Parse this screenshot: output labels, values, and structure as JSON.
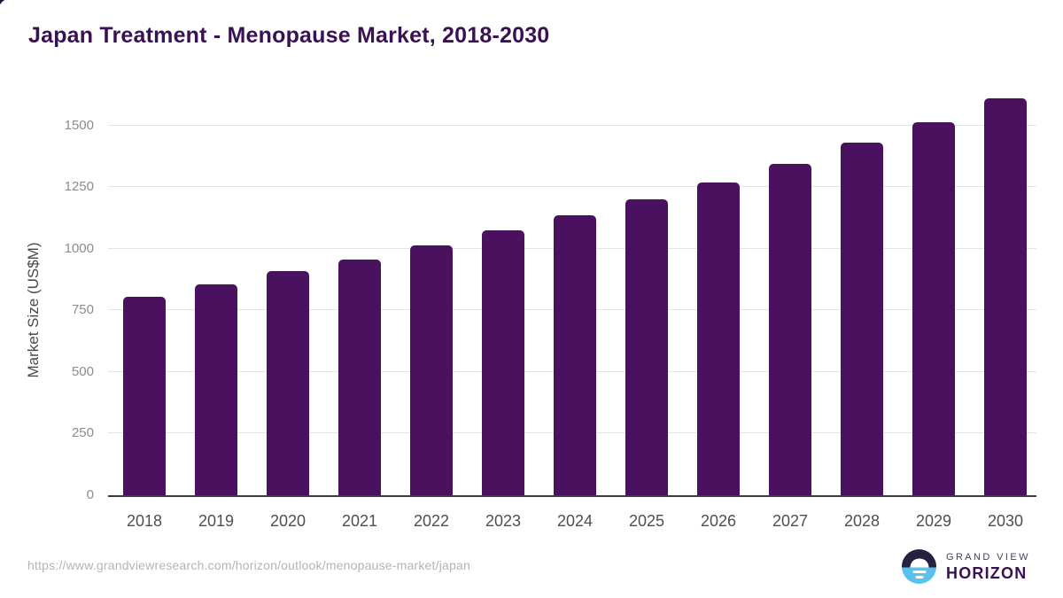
{
  "title": "Japan Treatment - Menopause Market, 2018-2030",
  "source_url": "https://www.grandviewresearch.com/horizon/outlook/menopause-market/japan",
  "branding": {
    "name_top": "GRAND VIEW",
    "name_bottom": "HORIZON",
    "logo_icon": "horizon-sun-icon"
  },
  "colors": {
    "bar": "#4a115e",
    "title": "#3a1153",
    "gridline": "#e4e4e4",
    "axis_line": "#3b3b3b",
    "y_tick_text": "#8c8c8c",
    "x_tick_text": "#4f4f4f",
    "url_text": "#b4b4b4",
    "logo_dark_half": "#27203f",
    "logo_blue_half": "#5ac1ef"
  },
  "chart_data": {
    "type": "bar",
    "title": "Japan Treatment - Menopause Market, 2018-2030",
    "categories": [
      "2018",
      "2019",
      "2020",
      "2021",
      "2022",
      "2023",
      "2024",
      "2025",
      "2026",
      "2027",
      "2028",
      "2029",
      "2030"
    ],
    "values": [
      805,
      855,
      910,
      955,
      1015,
      1075,
      1135,
      1200,
      1270,
      1345,
      1430,
      1515,
      1610
    ],
    "xlabel": "",
    "ylabel": "Market Size (US$M)",
    "ylim": [
      0,
      1650
    ],
    "yticks": [
      0,
      250,
      500,
      750,
      1000,
      1250,
      1500
    ],
    "grid": "horizontal",
    "legend": "none",
    "bar_color": "#4a115e"
  }
}
